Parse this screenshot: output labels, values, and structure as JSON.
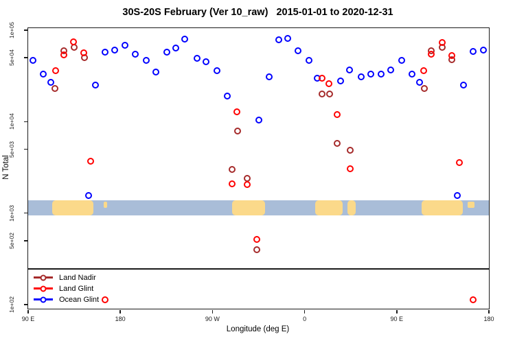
{
  "chart_data": {
    "type": "scatter",
    "title": "30S-20S February (Ver 10_raw)   2015-01-01 to 2020-12-31",
    "xlabel": "Longitude (deg E)",
    "ylabel": "N Total",
    "x_axis": {
      "description": "Longitude wrapping eastward from 90E to 180 (450 degrees total)",
      "deg_start": 90,
      "deg_end": 540,
      "ticks": [
        {
          "deg": 90,
          "label": "90 E"
        },
        {
          "deg": 180,
          "label": "180"
        },
        {
          "deg": 270,
          "label": "90 W"
        },
        {
          "deg": 360,
          "label": "0"
        },
        {
          "deg": 450,
          "label": "90 E"
        },
        {
          "deg": 540,
          "label": "180"
        }
      ]
    },
    "y_axis": {
      "scale": "log10",
      "ylim_log10": [
        1.955,
        5.023
      ],
      "ticks": [
        {
          "value": 100,
          "label": "1e+02"
        },
        {
          "value": 500,
          "label": "5e+02"
        },
        {
          "value": 1000,
          "label": "1e+03"
        },
        {
          "value": 5000,
          "label": "5e+03"
        },
        {
          "value": 10000,
          "label": "1e+04"
        },
        {
          "value": 50000,
          "label": "5e+04"
        },
        {
          "value": 100000,
          "label": "1e+05"
        }
      ],
      "grid": false
    },
    "map_band": {
      "description": "30S-20S latitude strip world map drawn across the plot",
      "value_top": 1370,
      "value_bottom": 950,
      "ocean_color": "#a9bdd8",
      "land_color": "#fbd98a",
      "land_segments_deg": [
        {
          "from": 113.5,
          "to": 153.7,
          "kind": "blob",
          "name": "australia"
        },
        {
          "from": 163.8,
          "to": 167.1,
          "kind": "island",
          "name": "island-east-of-australia"
        },
        {
          "from": 289.2,
          "to": 321.4,
          "kind": "blob",
          "name": "south-america"
        },
        {
          "from": 370.3,
          "to": 397.2,
          "kind": "blob",
          "name": "southern-africa"
        },
        {
          "from": 401.9,
          "to": 409.9,
          "kind": "blob",
          "name": "madagascar"
        },
        {
          "from": 474.3,
          "to": 514.5,
          "kind": "blob",
          "name": "australia-wrap"
        },
        {
          "from": 519.2,
          "to": 525.9,
          "kind": "island",
          "name": "island-east-of-australia-wrap"
        }
      ]
    },
    "legend": {
      "position": "bottom-left",
      "entries": [
        "Land Nadir",
        "Land Glint",
        "Ocean Glint"
      ]
    },
    "series": [
      {
        "name": "Land Nadir",
        "color": "#a52a2a",
        "points": [
          [
            116.2,
            23000
          ],
          [
            124.9,
            60000
          ],
          [
            134.9,
            65000
          ],
          [
            145.0,
            50000
          ],
          [
            289.2,
            3000
          ],
          [
            294.6,
            7900
          ],
          [
            304.0,
            2400
          ],
          [
            313.3,
            400
          ],
          [
            377.0,
            20000
          ],
          [
            384.4,
            20000
          ],
          [
            391.8,
            5800
          ],
          [
            404.6,
            4900
          ],
          [
            477.0,
            23000
          ],
          [
            483.7,
            60000
          ],
          [
            494.4,
            65000
          ],
          [
            503.8,
            48000
          ]
        ]
      },
      {
        "name": "Land Glint",
        "color": "#ff0000",
        "points": [
          [
            116.8,
            36000
          ],
          [
            124.9,
            54000
          ],
          [
            134.3,
            75000
          ],
          [
            144.3,
            57000
          ],
          [
            151.0,
            3700
          ],
          [
            165.1,
            113
          ],
          [
            289.2,
            2100
          ],
          [
            293.9,
            12800
          ],
          [
            304.0,
            2060
          ],
          [
            313.3,
            520
          ],
          [
            377.0,
            30000
          ],
          [
            383.8,
            26000
          ],
          [
            391.8,
            12000
          ],
          [
            404.6,
            3060
          ],
          [
            476.3,
            36000
          ],
          [
            483.7,
            55000
          ],
          [
            494.4,
            73000
          ],
          [
            503.8,
            53000
          ],
          [
            511.2,
            3600
          ],
          [
            524.6,
            113
          ]
        ]
      },
      {
        "name": "Ocean Glint",
        "color": "#0000ff",
        "points": [
          [
            94.7,
            47000
          ],
          [
            104.8,
            33000
          ],
          [
            112.1,
            27000
          ],
          [
            149.0,
            1560
          ],
          [
            155.7,
            25000
          ],
          [
            165.1,
            58000
          ],
          [
            174.5,
            61000
          ],
          [
            184.6,
            69000
          ],
          [
            194.6,
            55000
          ],
          [
            205.3,
            47000
          ],
          [
            214.7,
            35000
          ],
          [
            225.5,
            58000
          ],
          [
            234.2,
            64000
          ],
          [
            242.9,
            80000
          ],
          [
            255.0,
            49000
          ],
          [
            263.7,
            45000
          ],
          [
            274.4,
            36000
          ],
          [
            284.5,
            19000
          ],
          [
            315.3,
            10400
          ],
          [
            325.4,
            31000
          ],
          [
            334.8,
            79000
          ],
          [
            343.5,
            81000
          ],
          [
            353.6,
            60000
          ],
          [
            364.3,
            47000
          ],
          [
            372.3,
            30000
          ],
          [
            395.1,
            28000
          ],
          [
            403.9,
            37000
          ],
          [
            415.3,
            31000
          ],
          [
            424.7,
            33000
          ],
          [
            434.7,
            33000
          ],
          [
            444.1,
            37000
          ],
          [
            454.8,
            47000
          ],
          [
            464.9,
            33000
          ],
          [
            472.3,
            27000
          ],
          [
            509.1,
            1560
          ],
          [
            515.2,
            25000
          ],
          [
            524.6,
            59000
          ],
          [
            534.6,
            61000
          ]
        ]
      }
    ]
  }
}
